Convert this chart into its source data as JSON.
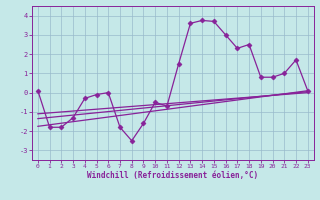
{
  "title": "",
  "xlabel": "Windchill (Refroidissement éolien,°C)",
  "ylabel": "",
  "xlim": [
    -0.5,
    23.5
  ],
  "ylim": [
    -3.5,
    4.5
  ],
  "yticks": [
    -3,
    -2,
    -1,
    0,
    1,
    2,
    3,
    4
  ],
  "xticks": [
    0,
    1,
    2,
    3,
    4,
    5,
    6,
    7,
    8,
    9,
    10,
    11,
    12,
    13,
    14,
    15,
    16,
    17,
    18,
    19,
    20,
    21,
    22,
    23
  ],
  "bg_color": "#c5e8e8",
  "line_color": "#882299",
  "markersize": 2.5,
  "linewidth": 0.9,
  "main_x": [
    0,
    1,
    2,
    3,
    4,
    5,
    6,
    7,
    8,
    9,
    10,
    11,
    12,
    13,
    14,
    15,
    16,
    17,
    18,
    19,
    20,
    21,
    22,
    23
  ],
  "main_y": [
    0.1,
    -1.8,
    -1.8,
    -1.3,
    -0.3,
    -0.1,
    0.0,
    -1.8,
    -2.5,
    -1.6,
    -0.5,
    -0.7,
    1.5,
    3.6,
    3.75,
    3.7,
    3.0,
    2.3,
    2.5,
    0.8,
    0.8,
    1.0,
    1.7,
    0.1
  ],
  "trend_lines": [
    {
      "x": [
        0,
        23
      ],
      "y": [
        -1.75,
        0.1
      ]
    },
    {
      "x": [
        0,
        23
      ],
      "y": [
        -1.35,
        0.05
      ]
    },
    {
      "x": [
        0,
        23
      ],
      "y": [
        -1.1,
        0.0
      ]
    }
  ],
  "grid_color": "#99bbcc",
  "grid_linewidth": 0.5
}
